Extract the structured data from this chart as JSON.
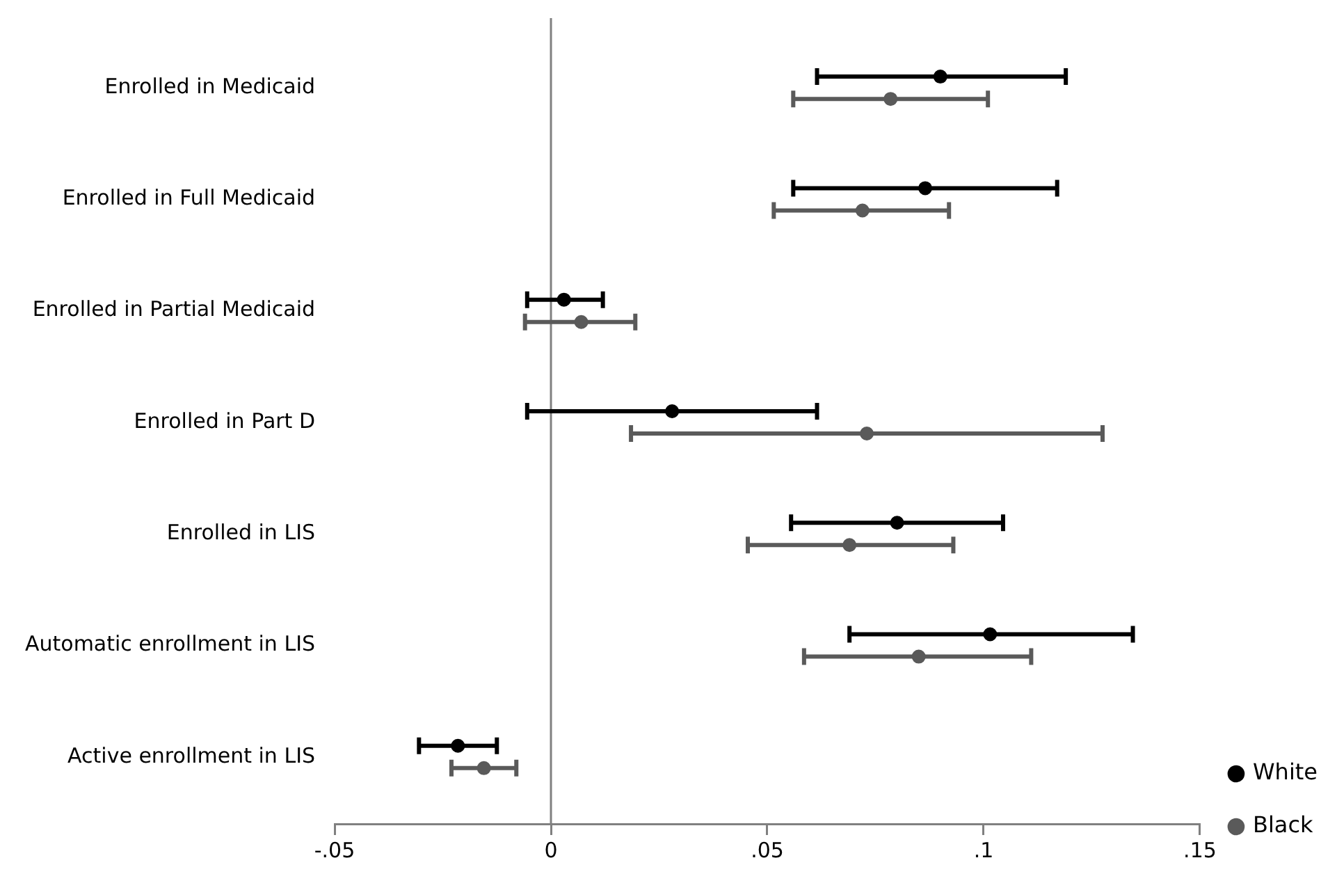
{
  "chart_data": {
    "type": "scatter",
    "orientation": "horizontal",
    "categories": [
      "Enrolled in Medicaid",
      "Enrolled in Full Medicaid",
      "Enrolled in Partial Medicaid",
      "Enrolled in Part D",
      "Enrolled in LIS",
      "Automatic enrollment in LIS",
      "Active enrollment in LIS"
    ],
    "series": [
      {
        "name": "White",
        "color": "#000000",
        "values": [
          0.09,
          0.0865,
          0.003,
          0.028,
          0.08,
          0.1015,
          -0.0215
        ],
        "errors": [
          [
            0.0615,
            0.119
          ],
          [
            0.056,
            0.117
          ],
          [
            -0.0055,
            0.012
          ],
          [
            -0.0055,
            0.0615
          ],
          [
            0.0555,
            0.1045
          ],
          [
            0.069,
            0.1345
          ],
          [
            -0.0305,
            -0.0125
          ]
        ]
      },
      {
        "name": "Black",
        "color": "#5a5a5a",
        "values": [
          0.0785,
          0.072,
          0.007,
          0.073,
          0.069,
          0.085,
          -0.0155
        ],
        "errors": [
          [
            0.056,
            0.101
          ],
          [
            0.0515,
            0.092
          ],
          [
            -0.006,
            0.0195
          ],
          [
            0.0185,
            0.1275
          ],
          [
            0.0455,
            0.093
          ],
          [
            0.0585,
            0.111
          ],
          [
            -0.023,
            -0.008
          ]
        ]
      }
    ],
    "xlim": [
      -0.05,
      0.15
    ],
    "xticks": [
      {
        "value": -0.05,
        "label": "-.05"
      },
      0,
      {
        "value": 0.05,
        "label": ".05"
      },
      {
        "value": 0.1,
        "label": ".1"
      },
      {
        "value": 0.15,
        "label": ".15"
      }
    ],
    "ref_lines": [
      {
        "axis": "x",
        "value": 0,
        "color": "#808080"
      }
    ],
    "grid": false,
    "legend": "bottom right",
    "marker": "circle"
  }
}
